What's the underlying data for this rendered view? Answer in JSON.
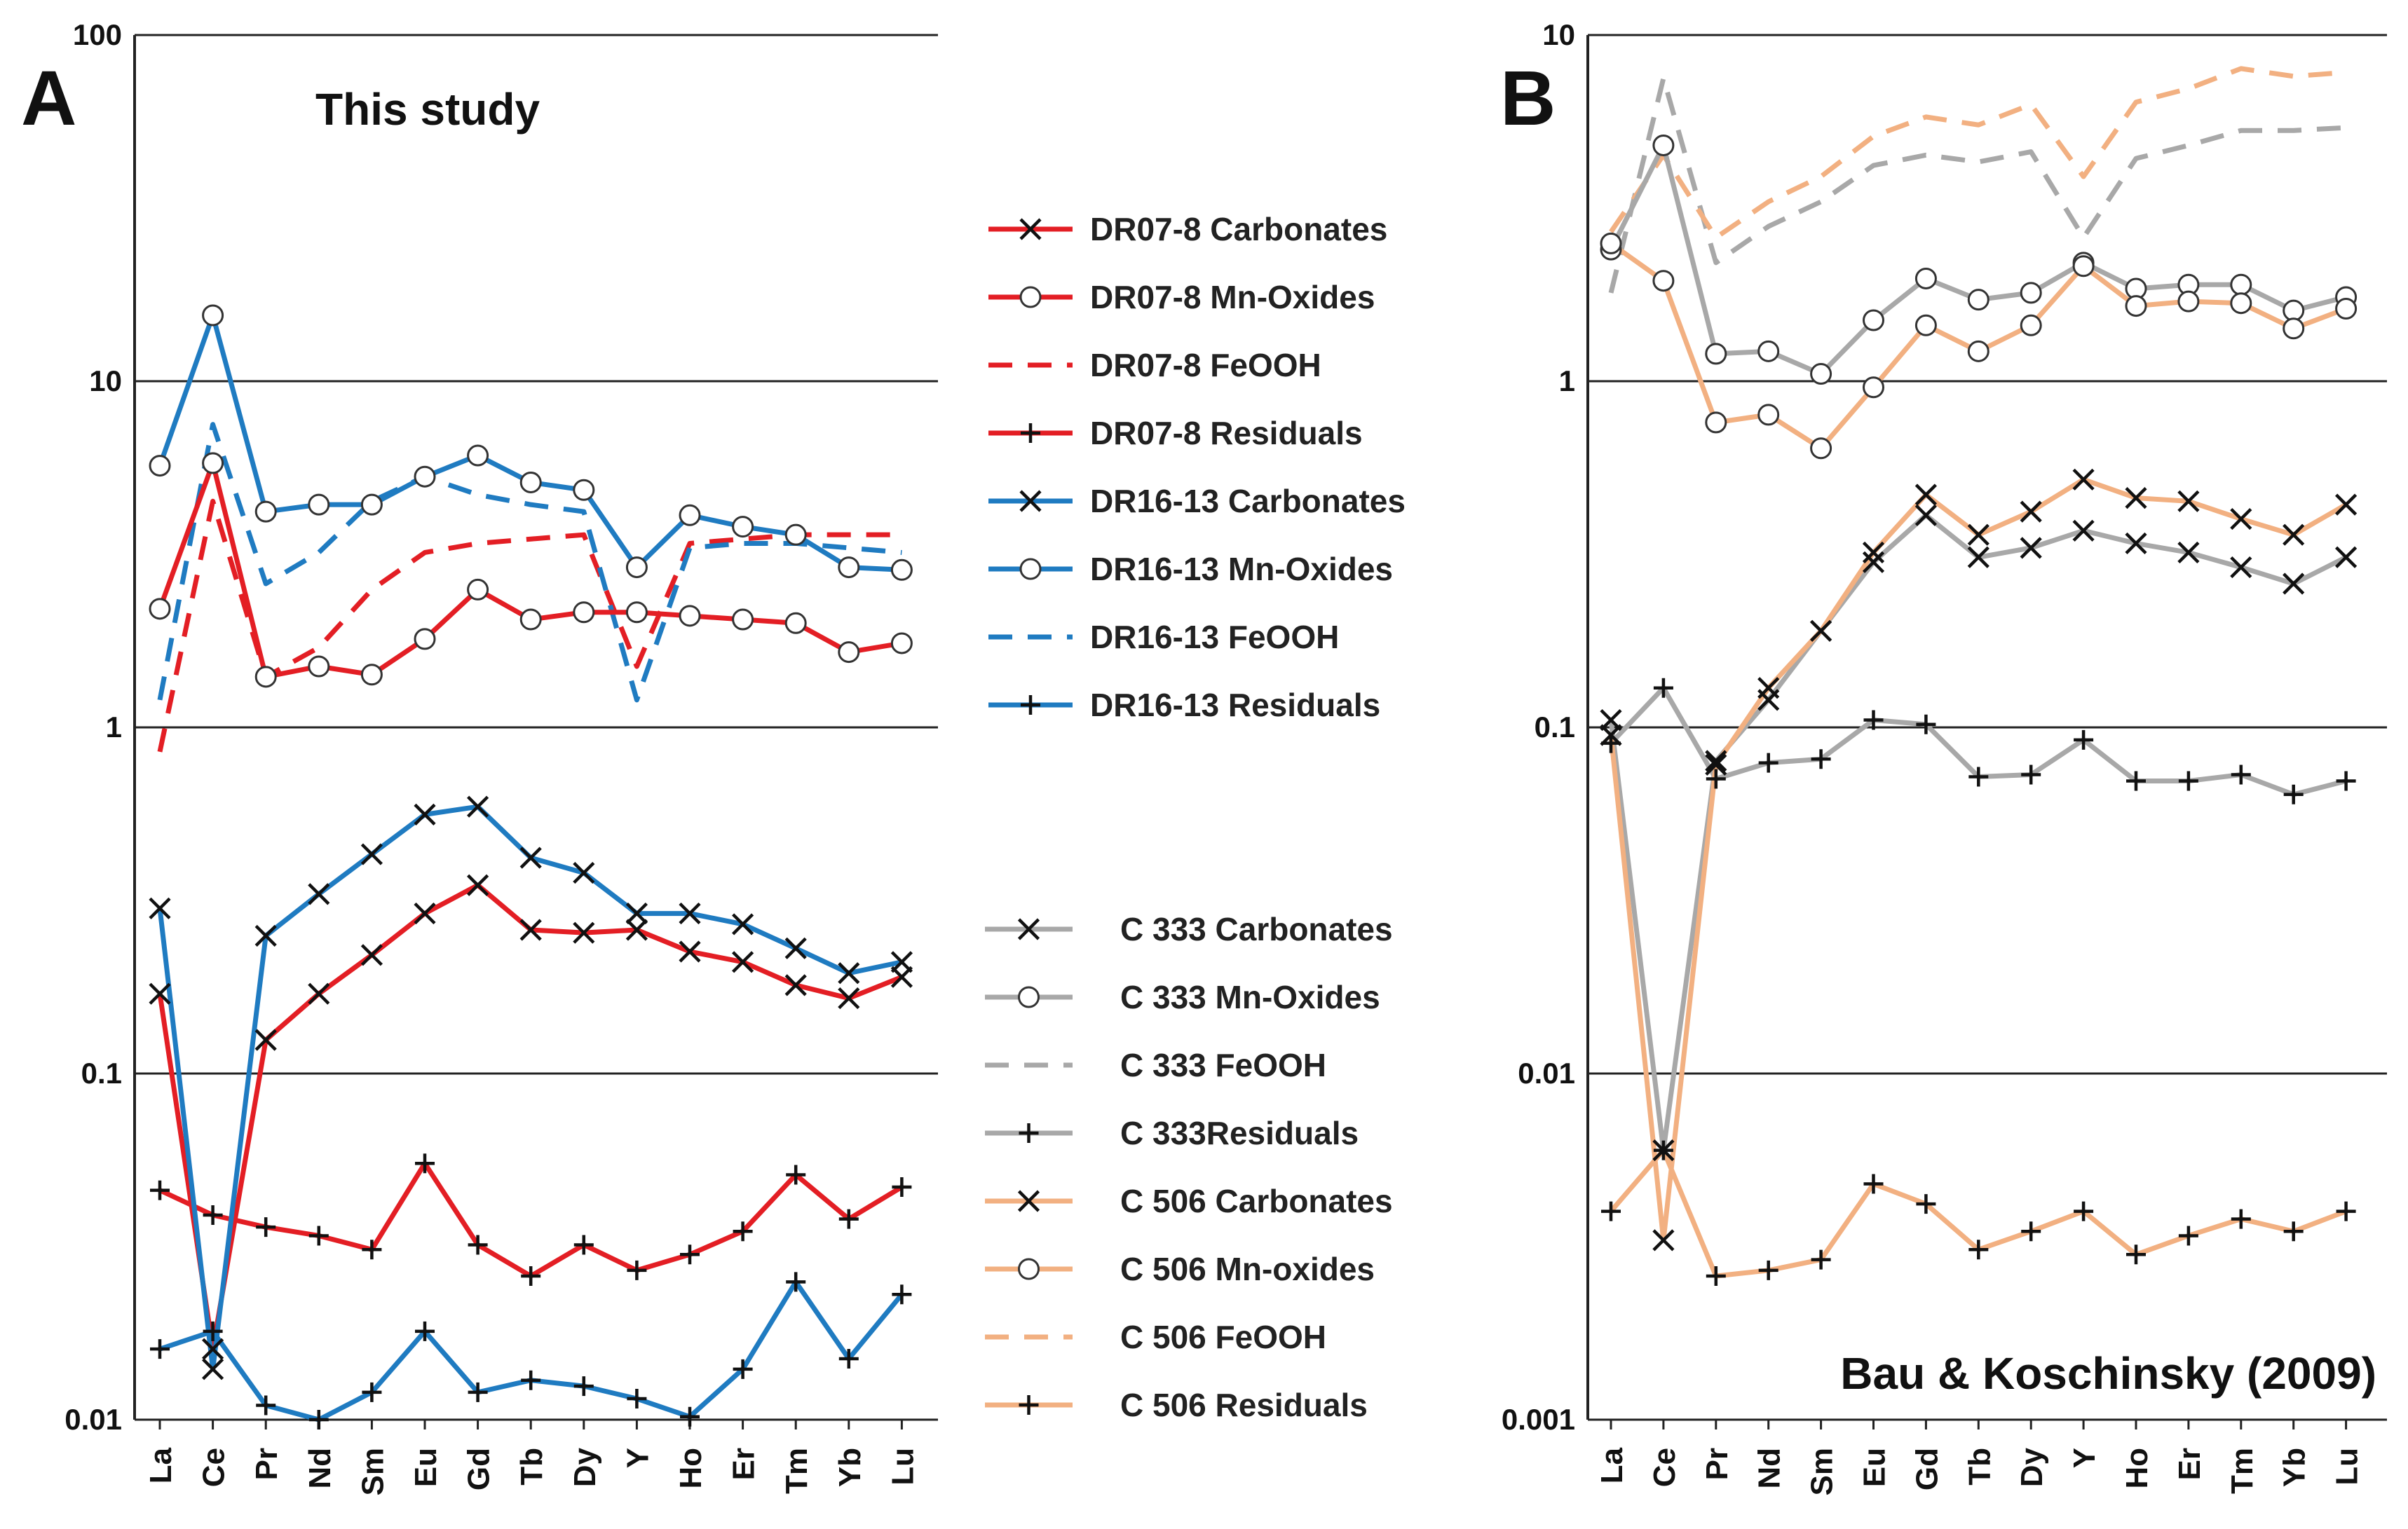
{
  "chart_data": [
    {
      "panel": "A",
      "type": "line",
      "title": "This study",
      "yscale": "log",
      "ylim": [
        0.01,
        100
      ],
      "yticks": [
        "100",
        "10",
        "1",
        "0.1",
        "0.01"
      ],
      "categories": [
        "La",
        "Ce",
        "Pr",
        "Nd",
        "Sm",
        "Eu",
        "Gd",
        "Tb",
        "Dy",
        "Y",
        "Ho",
        "Er",
        "Tm",
        "Yb",
        "Lu"
      ],
      "grid": "horizontal at decades",
      "series": [
        {
          "name": "DR07-8 Carbonates",
          "color": "#e31e24",
          "dash": "solid",
          "marker": "x",
          "values": [
            0.17,
            0.016,
            0.125,
            0.17,
            0.22,
            0.29,
            0.35,
            0.26,
            0.255,
            0.26,
            0.225,
            0.21,
            0.18,
            0.165,
            0.19
          ]
        },
        {
          "name": "DR07-8 Mn-Oxides",
          "color": "#e31e24",
          "dash": "solid",
          "marker": "o",
          "values": [
            2.2,
            5.8,
            1.4,
            1.5,
            1.42,
            1.8,
            2.5,
            2.05,
            2.15,
            2.15,
            2.1,
            2.05,
            2.0,
            1.65,
            1.75
          ]
        },
        {
          "name": "DR07-8 FeOOH",
          "color": "#e31e24",
          "dash": "dashed",
          "marker": "none",
          "values": [
            0.85,
            4.5,
            1.4,
            1.7,
            2.5,
            3.2,
            3.4,
            3.5,
            3.6,
            1.5,
            3.4,
            3.5,
            3.6,
            3.6,
            3.6
          ]
        },
        {
          "name": "DR07-8 Residuals",
          "color": "#e31e24",
          "dash": "solid",
          "marker": "plus",
          "values": [
            0.046,
            0.039,
            0.036,
            0.034,
            0.031,
            0.055,
            0.032,
            0.026,
            0.032,
            0.027,
            0.03,
            0.035,
            0.051,
            0.038,
            0.047
          ]
        },
        {
          "name": "DR16-13 Carbonates",
          "color": "#1f7bc1",
          "dash": "solid",
          "marker": "x",
          "values": [
            0.3,
            0.014,
            0.25,
            0.33,
            0.43,
            0.56,
            0.59,
            0.42,
            0.38,
            0.29,
            0.29,
            0.27,
            0.23,
            0.195,
            0.21
          ]
        },
        {
          "name": "DR16-13 Mn-Oxides",
          "color": "#1f7bc1",
          "dash": "solid",
          "marker": "o",
          "values": [
            5.7,
            15.5,
            4.2,
            4.4,
            4.4,
            5.3,
            6.1,
            5.1,
            4.85,
            2.9,
            4.1,
            3.8,
            3.6,
            2.9,
            2.85
          ]
        },
        {
          "name": "DR16-13 FeOOH",
          "color": "#1f7bc1",
          "dash": "dashed",
          "marker": "none",
          "values": [
            1.2,
            7.5,
            2.6,
            3.2,
            4.5,
            5.3,
            4.7,
            4.4,
            4.2,
            1.2,
            3.3,
            3.4,
            3.4,
            3.3,
            3.2
          ]
        },
        {
          "name": "DR16-13 Residuals",
          "color": "#1f7bc1",
          "dash": "solid",
          "marker": "plus",
          "values": [
            0.016,
            0.018,
            0.011,
            0.01,
            0.012,
            0.018,
            0.012,
            0.013,
            0.0125,
            0.0115,
            0.0102,
            0.014,
            0.025,
            0.015,
            0.023
          ]
        }
      ]
    },
    {
      "panel": "B",
      "type": "line",
      "title": "Bau & Koschinsky (2009)",
      "yscale": "log",
      "ylim": [
        0.001,
        10
      ],
      "yticks": [
        "10",
        "1",
        "0.1",
        "0.01",
        "0.001"
      ],
      "categories": [
        "La",
        "Ce",
        "Pr",
        "Nd",
        "Sm",
        "Eu",
        "Gd",
        "Tb",
        "Dy",
        "Y",
        "Ho",
        "Er",
        "Tm",
        "Yb",
        "Lu"
      ],
      "grid": "horizontal at decades",
      "series": [
        {
          "name": "C 333 Carbonates",
          "color": "#a8a8a8",
          "dash": "solid",
          "marker": "x",
          "values": [
            0.105,
            0.006,
            0.08,
            0.12,
            0.19,
            0.3,
            0.41,
            0.31,
            0.33,
            0.37,
            0.34,
            0.32,
            0.29,
            0.26,
            0.31
          ]
        },
        {
          "name": "C 333 Mn-Oxides",
          "color": "#a8a8a8",
          "dash": "solid",
          "marker": "o",
          "values": [
            2.4,
            4.8,
            1.2,
            1.22,
            1.05,
            1.5,
            1.98,
            1.72,
            1.8,
            2.2,
            1.85,
            1.9,
            1.9,
            1.6,
            1.75
          ]
        },
        {
          "name": "C 333 FeOOH",
          "color": "#a8a8a8",
          "dash": "dashed",
          "marker": "none",
          "values": [
            1.8,
            7.5,
            2.2,
            2.8,
            3.3,
            4.2,
            4.5,
            4.3,
            4.6,
            2.6,
            4.4,
            4.8,
            5.3,
            5.3,
            5.4
          ]
        },
        {
          "name": "C 333Residuals",
          "color": "#a8a8a8",
          "dash": "solid",
          "marker": "plus",
          "values": [
            0.09,
            0.13,
            0.071,
            0.079,
            0.081,
            0.105,
            0.102,
            0.072,
            0.073,
            0.092,
            0.07,
            0.07,
            0.073,
            0.064,
            0.07
          ]
        },
        {
          "name": "C 506 Carbonates",
          "color": "#f2b081",
          "dash": "solid",
          "marker": "x",
          "values": [
            0.095,
            0.0033,
            0.078,
            0.13,
            0.19,
            0.32,
            0.47,
            0.36,
            0.42,
            0.52,
            0.46,
            0.45,
            0.4,
            0.36,
            0.44
          ]
        },
        {
          "name": "C 506 Mn-oxides",
          "color": "#f2b081",
          "dash": "solid",
          "marker": "o",
          "values": [
            2.5,
            1.95,
            0.76,
            0.8,
            0.64,
            0.96,
            1.45,
            1.22,
            1.45,
            2.15,
            1.65,
            1.7,
            1.68,
            1.42,
            1.62
          ]
        },
        {
          "name": "C 506 FeOOH",
          "color": "#f2b081",
          "dash": "dashed",
          "marker": "none",
          "values": [
            2.7,
            4.5,
            2.6,
            3.3,
            3.9,
            5.1,
            5.8,
            5.5,
            6.3,
            3.9,
            6.4,
            7.0,
            8.0,
            7.6,
            7.8
          ]
        },
        {
          "name": "C 506 Residuals",
          "color": "#f2b081",
          "dash": "solid",
          "marker": "plus",
          "values": [
            0.004,
            0.006,
            0.0026,
            0.0027,
            0.0029,
            0.0048,
            0.0042,
            0.0031,
            0.0035,
            0.004,
            0.003,
            0.0034,
            0.0038,
            0.0035,
            0.004
          ]
        }
      ]
    }
  ]
}
